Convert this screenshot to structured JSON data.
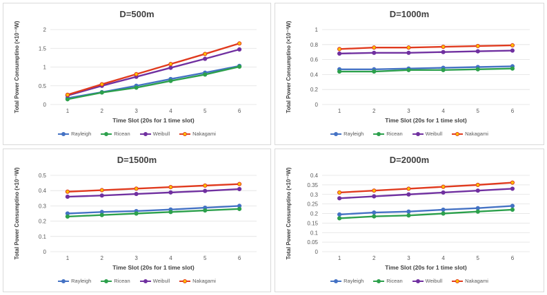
{
  "colors": {
    "Rayleigh": "#4472c4",
    "Ricean": "#2ca04c",
    "Weibull": "#7030a0",
    "Nakagami": "#e03a1e",
    "marker_inner": "#ffc000",
    "grid": "#e0e0e0",
    "axis_text": "#595959"
  },
  "chart_data": [
    {
      "type": "line",
      "title": "D=500m",
      "xlabel": "Time Slot (20s for 1 time slot)",
      "ylabel": "Total Power Consumptino (×10⁻³W)",
      "x": [
        1,
        2,
        3,
        4,
        5,
        6
      ],
      "ylim": [
        0,
        2
      ],
      "yticks": [
        "0",
        "0.5",
        "1",
        "1.5",
        "2"
      ],
      "series": [
        {
          "name": "Rayleigh",
          "values": [
            0.17,
            0.33,
            0.5,
            0.68,
            0.85,
            1.03
          ]
        },
        {
          "name": "Ricean",
          "values": [
            0.14,
            0.32,
            0.45,
            0.63,
            0.8,
            1.01
          ]
        },
        {
          "name": "Weibull",
          "values": [
            0.24,
            0.5,
            0.74,
            0.98,
            1.22,
            1.47
          ]
        },
        {
          "name": "Nakagami",
          "values": [
            0.26,
            0.54,
            0.81,
            1.08,
            1.35,
            1.63
          ]
        }
      ]
    },
    {
      "type": "line",
      "title": "D=1000m",
      "xlabel": "Time Slot (20s for 1 time slot)",
      "ylabel": "Total Power Consumptino (×10⁻³W)",
      "x": [
        1,
        2,
        3,
        4,
        5,
        6
      ],
      "ylim": [
        0,
        1
      ],
      "yticks": [
        "0",
        "0.2",
        "0.4",
        "0.6",
        "0.8",
        "1"
      ],
      "series": [
        {
          "name": "Rayleigh",
          "values": [
            0.47,
            0.47,
            0.48,
            0.49,
            0.5,
            0.51
          ]
        },
        {
          "name": "Ricean",
          "values": [
            0.44,
            0.44,
            0.46,
            0.46,
            0.47,
            0.48
          ]
        },
        {
          "name": "Weibull",
          "values": [
            0.68,
            0.69,
            0.69,
            0.7,
            0.71,
            0.72
          ]
        },
        {
          "name": "Nakagami",
          "values": [
            0.74,
            0.76,
            0.76,
            0.77,
            0.78,
            0.79
          ]
        }
      ]
    },
    {
      "type": "line",
      "title": "D=1500m",
      "xlabel": "Time Slot (20s for 1 time slot)",
      "ylabel": "Total Power Consumptino (×10⁻³W)",
      "x": [
        1,
        2,
        3,
        4,
        5,
        6
      ],
      "ylim": [
        0,
        0.5
      ],
      "yticks": [
        "0",
        "0.1",
        "0.2",
        "0.3",
        "0.4",
        "0.5"
      ],
      "series": [
        {
          "name": "Rayleigh",
          "values": [
            0.25,
            0.26,
            0.266,
            0.276,
            0.288,
            0.3
          ]
        },
        {
          "name": "Ricean",
          "values": [
            0.23,
            0.24,
            0.25,
            0.26,
            0.27,
            0.28
          ]
        },
        {
          "name": "Weibull",
          "values": [
            0.36,
            0.368,
            0.378,
            0.388,
            0.398,
            0.41
          ]
        },
        {
          "name": "Nakagami",
          "values": [
            0.393,
            0.403,
            0.413,
            0.423,
            0.433,
            0.443
          ]
        }
      ]
    },
    {
      "type": "line",
      "title": "D=2000m",
      "xlabel": "Time Slot (20s for 1 time slot)",
      "ylabel": "Total Power Consumptino (×10⁻³W)",
      "x": [
        1,
        2,
        3,
        4,
        5,
        6
      ],
      "ylim": [
        0,
        0.4
      ],
      "yticks": [
        "0",
        "0.05",
        "0.1",
        "0.15",
        "0.2",
        "0.25",
        "0.3",
        "0.35",
        "0.4"
      ],
      "series": [
        {
          "name": "Rayleigh",
          "values": [
            0.195,
            0.205,
            0.21,
            0.22,
            0.228,
            0.24
          ]
        },
        {
          "name": "Ricean",
          "values": [
            0.175,
            0.185,
            0.19,
            0.2,
            0.21,
            0.22
          ]
        },
        {
          "name": "Weibull",
          "values": [
            0.28,
            0.29,
            0.3,
            0.31,
            0.32,
            0.33
          ]
        },
        {
          "name": "Nakagami",
          "values": [
            0.31,
            0.32,
            0.33,
            0.34,
            0.35,
            0.362
          ]
        }
      ]
    }
  ]
}
